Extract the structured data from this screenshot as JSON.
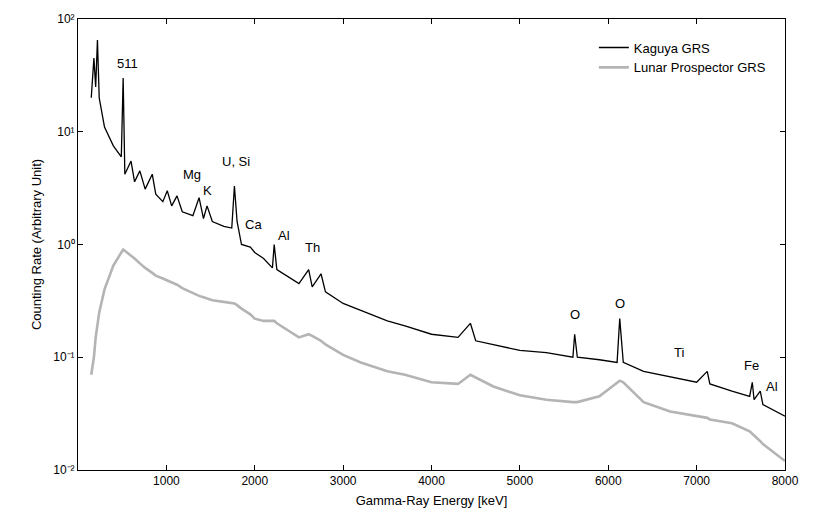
{
  "chart_data": {
    "type": "line",
    "x_label": "Gamma-Ray Energy [keV]",
    "y_label": "Counting Rate (Arbitrary Unit)",
    "log": "y",
    "grid": false,
    "legend": "top right",
    "xlim": [
      0,
      8000
    ],
    "xticks": [
      1000,
      2000,
      3000,
      4000,
      5000,
      6000,
      7000,
      8000
    ],
    "ylim": [
      0.01,
      100
    ],
    "yticks": [
      {
        "value": 0.01,
        "label": "10⁻²"
      },
      {
        "value": 0.1,
        "label": "10⁻¹"
      },
      {
        "value": 1,
        "label": "10⁰"
      },
      {
        "value": 10,
        "label": "10¹"
      },
      {
        "value": 100,
        "label": "10²"
      }
    ],
    "x": [
      150,
      180,
      200,
      220,
      240,
      300,
      400,
      490,
      511,
      530,
      600,
      640,
      700,
      760,
      840,
      880,
      960,
      1010,
      1060,
      1120,
      1180,
      1300,
      1370,
      1420,
      1460,
      1520,
      1650,
      1740,
      1770,
      1800,
      1850,
      1950,
      2000,
      2100,
      2200,
      2220,
      2250,
      2400,
      2500,
      2610,
      2650,
      2750,
      2800,
      3000,
      3200,
      3500,
      3700,
      4000,
      4300,
      4440,
      4500,
      4700,
      5000,
      5300,
      5600,
      5620,
      5650,
      5900,
      6100,
      6130,
      6170,
      6400,
      6700,
      7000,
      7120,
      7150,
      7400,
      7600,
      7630,
      7650,
      7720,
      7750,
      8000
    ],
    "series": [
      {
        "name": "Kaguya GRS",
        "color": "#000000",
        "line_style": "solid",
        "values": [
          20,
          45,
          25,
          65,
          20,
          11,
          7.5,
          6,
          30,
          4.2,
          5.5,
          3.6,
          4.5,
          3.1,
          4.2,
          2.8,
          2.4,
          3.0,
          2.2,
          2.7,
          1.95,
          1.8,
          2.6,
          1.7,
          2.2,
          1.6,
          1.45,
          1.4,
          3.3,
          1.6,
          1.0,
          0.95,
          0.85,
          0.75,
          0.62,
          1.0,
          0.6,
          0.5,
          0.45,
          0.6,
          0.42,
          0.55,
          0.38,
          0.3,
          0.26,
          0.21,
          0.19,
          0.16,
          0.15,
          0.2,
          0.14,
          0.13,
          0.115,
          0.11,
          0.1,
          0.16,
          0.1,
          0.095,
          0.09,
          0.22,
          0.09,
          0.075,
          0.067,
          0.06,
          0.075,
          0.058,
          0.05,
          0.045,
          0.06,
          0.042,
          0.05,
          0.038,
          0.03
        ]
      },
      {
        "name": "Lunar Prospector GRS",
        "color": "#b4b4b4",
        "line_style": "solid",
        "values": [
          0.07,
          0.1,
          0.15,
          0.2,
          0.25,
          0.4,
          0.65,
          0.85,
          0.9,
          0.88,
          0.8,
          0.75,
          0.68,
          0.62,
          0.56,
          0.53,
          0.5,
          0.48,
          0.46,
          0.44,
          0.41,
          0.37,
          0.35,
          0.34,
          0.33,
          0.32,
          0.31,
          0.3,
          0.3,
          0.29,
          0.27,
          0.24,
          0.22,
          0.21,
          0.21,
          0.21,
          0.2,
          0.17,
          0.15,
          0.16,
          0.155,
          0.14,
          0.13,
          0.105,
          0.09,
          0.075,
          0.07,
          0.06,
          0.058,
          0.07,
          0.066,
          0.055,
          0.046,
          0.042,
          0.04,
          0.04,
          0.04,
          0.045,
          0.06,
          0.062,
          0.06,
          0.04,
          0.033,
          0.03,
          0.029,
          0.028,
          0.026,
          0.022,
          0.021,
          0.02,
          0.018,
          0.017,
          0.012
        ]
      }
    ],
    "annotations": [
      {
        "text": "511",
        "x": 560,
        "y": 40
      },
      {
        "text": "Mg",
        "x": 1290,
        "y": 4.2
      },
      {
        "text": "K",
        "x": 1460,
        "y": 3.0
      },
      {
        "text": "U, Si",
        "x": 1790,
        "y": 5.5
      },
      {
        "text": "Ca",
        "x": 1990,
        "y": 1.5
      },
      {
        "text": "Al",
        "x": 2330,
        "y": 1.2
      },
      {
        "text": "Th",
        "x": 2650,
        "y": 0.95
      },
      {
        "text": "O",
        "x": 5620,
        "y": 0.24
      },
      {
        "text": "O",
        "x": 6130,
        "y": 0.3
      },
      {
        "text": "Ti",
        "x": 6800,
        "y": 0.11
      },
      {
        "text": "Fe",
        "x": 7620,
        "y": 0.085
      },
      {
        "text": "Al",
        "x": 7850,
        "y": 0.055
      }
    ]
  }
}
